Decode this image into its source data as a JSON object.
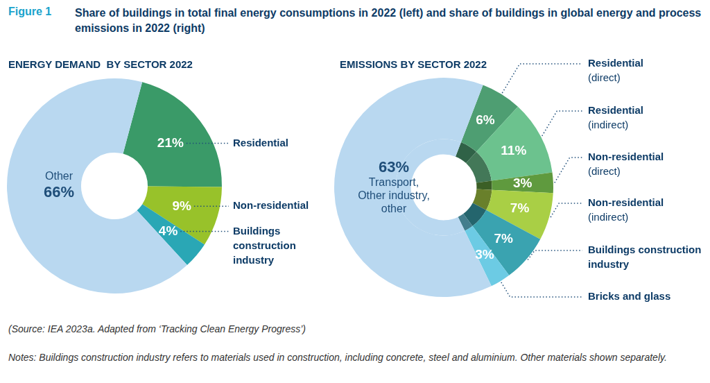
{
  "figure_label": "Figure 1",
  "title": "Share of buildings in total final energy consumptions in 2022 (left) and share of buildings in global energy and process emissions in 2022 (right)",
  "chart_data": [
    {
      "type": "doughnut",
      "title": "ENERGY DEMAND  BY SECTOR 2022",
      "categories": [
        "Residential",
        "Non-residential",
        "Buildings construction industry",
        "Other"
      ],
      "values": [
        21,
        9,
        4,
        66
      ],
      "value_labels": [
        "21%",
        "9%",
        "4%",
        "66%"
      ],
      "colors": [
        "#3a9a68",
        "#98c22a",
        "#2aa7b5",
        "#b9d8f0"
      ],
      "data_labels": true
    },
    {
      "type": "doughnut",
      "title": "EMISSIONS BY SECTOR 2022",
      "categories": [
        "Residential (direct)",
        "Residential (indirect)",
        "Non-residential (direct)",
        "Non-residential (indirect)",
        "Buildings construction industry",
        "Bricks and glass",
        "Transport, Other industry, other"
      ],
      "values": [
        6,
        11,
        3,
        7,
        7,
        3,
        63
      ],
      "value_labels": [
        "6%",
        "11%",
        "3%",
        "7%",
        "7%",
        "3%",
        "63%"
      ],
      "colors": [
        "#4e9e72",
        "#6cc28e",
        "#5f9a3e",
        "#a9cf45",
        "#3aa3b0",
        "#6ccbe4",
        "#b9d8f0"
      ],
      "data_labels": true
    }
  ],
  "source": "(Source: IEA 2023a. Adapted from ‘Tracking Clean Energy Progress’)",
  "notes": "Notes: Buildings construction industry refers to materials used in construction, including concrete, steel and aluminium. Other materials shown separately."
}
